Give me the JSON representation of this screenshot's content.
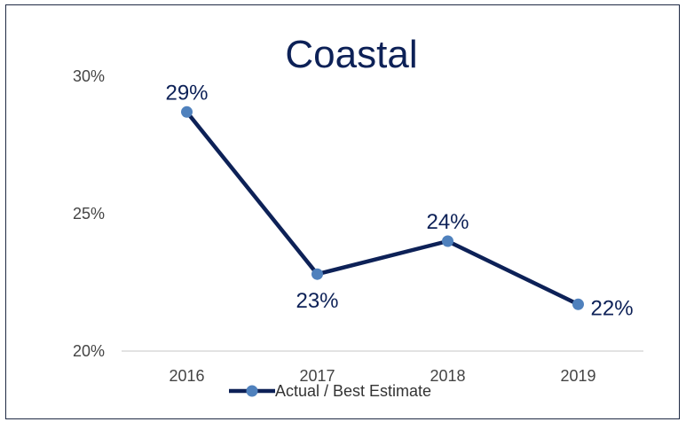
{
  "chart_data": {
    "type": "line",
    "title": "Coastal",
    "categories": [
      "2016",
      "2017",
      "2018",
      "2019"
    ],
    "series": [
      {
        "name": "Actual / Best Estimate",
        "values": [
          28.7,
          22.8,
          24.0,
          21.7
        ]
      }
    ],
    "data_labels": [
      "29%",
      "23%",
      "24%",
      "22%"
    ],
    "ylim": [
      20,
      30
    ],
    "yticks": [
      20,
      25,
      30
    ],
    "ytick_labels": [
      "20%",
      "25%",
      "30%"
    ],
    "grid": false,
    "legend_position": "bottom",
    "colors": {
      "line": "#0d2157",
      "marker": "#4f81bd",
      "axis": "#d9d9d9",
      "title": "#0d2157"
    }
  }
}
